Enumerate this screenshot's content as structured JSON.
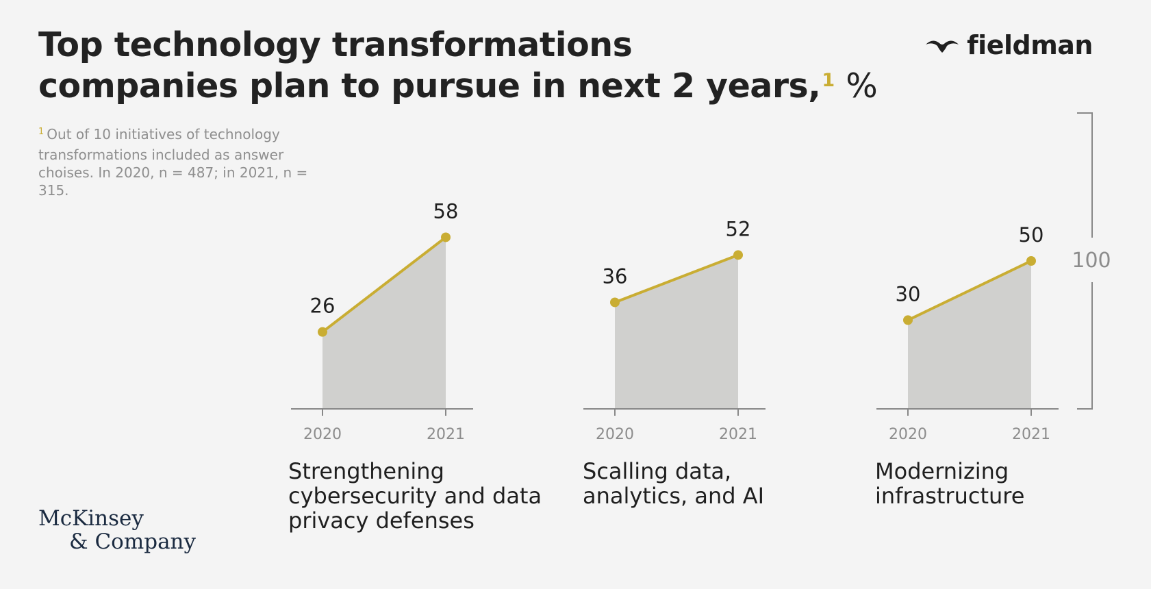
{
  "header": {
    "title_line1": "Top technology transformations",
    "title_line2": "companies plan to pursue in next 2 years,",
    "title_footnote_mark": "1",
    "title_unit": "%"
  },
  "footnote": {
    "mark": "1",
    "text": "Out of 10 initiatives of technology transformations included as answer choises. In 2020, n = 487; in 2021, n = 315."
  },
  "brand": {
    "name": "fieldman",
    "icon": "bird-icon"
  },
  "source": {
    "line1": "McKinsey",
    "line2": "& Company"
  },
  "colors": {
    "accent": "#c9ad33",
    "area": "#d0d0ce",
    "axis": "#888888",
    "background": "#f4f4f4"
  },
  "chart_data": {
    "type": "area",
    "x": [
      "2020",
      "2021"
    ],
    "ylim": [
      0,
      100
    ],
    "scale_label": "100",
    "panels": [
      {
        "title": "Strengthening cybersecurity and data privacy defenses",
        "values": [
          26,
          58
        ],
        "labels": [
          "26",
          "58"
        ]
      },
      {
        "title": "Scalling data, analytics, and AI",
        "values": [
          36,
          52
        ],
        "labels": [
          "36",
          "52"
        ]
      },
      {
        "title": "Modernizing infrastructure",
        "values": [
          30,
          50
        ],
        "labels": [
          "30",
          "50"
        ]
      }
    ]
  }
}
